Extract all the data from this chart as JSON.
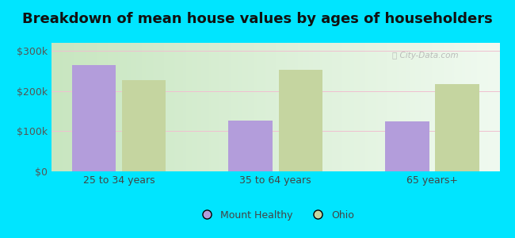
{
  "title": "Breakdown of mean house values by ages of householders",
  "categories": [
    "25 to 34 years",
    "35 to 64 years",
    "65 years+"
  ],
  "mount_healthy": [
    265000,
    127000,
    125000
  ],
  "ohio": [
    228000,
    252000,
    218000
  ],
  "bar_color_mh": "#b39ddb",
  "bar_color_ohio": "#c5d5a0",
  "ylim": [
    0,
    320000
  ],
  "yticks": [
    0,
    100000,
    200000,
    300000
  ],
  "ytick_labels": [
    "$0",
    "$100k",
    "$200k",
    "$300k"
  ],
  "legend_mh": "Mount Healthy",
  "legend_ohio": "Ohio",
  "bg_gradient_left": "#c8e6c0",
  "bg_gradient_right": "#f0f8f0",
  "bg_outer": "#00e5ff",
  "title_fontsize": 13,
  "tick_fontsize": 9,
  "legend_fontsize": 9,
  "bar_width": 0.28,
  "bar_gap": 0.04
}
